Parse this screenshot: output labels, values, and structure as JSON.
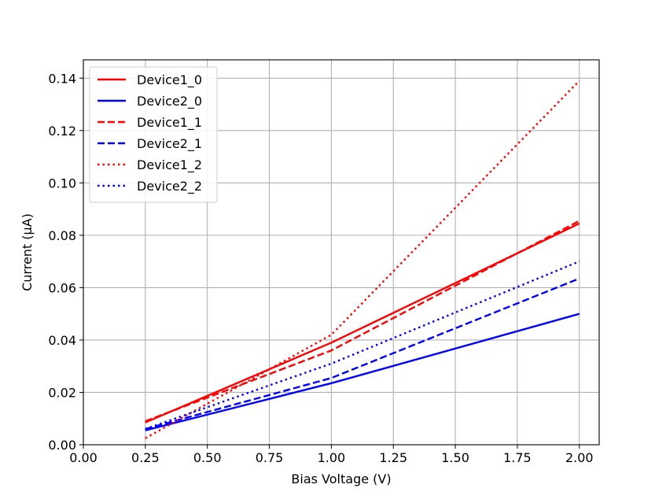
{
  "chart_data": {
    "type": "line",
    "title": "",
    "xlabel": "Bias Voltage (V)",
    "ylabel": "Current (µA)",
    "xlim": [
      0.0,
      2.08
    ],
    "ylim": [
      0.0,
      0.147
    ],
    "x_ticks": [
      "0.00",
      "0.25",
      "0.50",
      "0.75",
      "1.00",
      "1.25",
      "1.50",
      "1.75",
      "2.00"
    ],
    "x_tick_values": [
      0.0,
      0.25,
      0.5,
      0.75,
      1.0,
      1.25,
      1.5,
      1.75,
      2.0
    ],
    "y_ticks": [
      "0.00",
      "0.02",
      "0.04",
      "0.06",
      "0.08",
      "0.10",
      "0.12",
      "0.14"
    ],
    "y_tick_values": [
      0.0,
      0.02,
      0.04,
      0.06,
      0.08,
      0.1,
      0.12,
      0.14
    ],
    "grid": true,
    "legend_position": "top-left",
    "x": [
      0.25,
      1.0,
      2.0
    ],
    "series": [
      {
        "name": "Device1_0",
        "color": "#ff0000",
        "style": "solid",
        "values": [
          0.0085,
          0.039,
          0.0845
        ]
      },
      {
        "name": "Device2_0",
        "color": "#0000ff",
        "style": "solid",
        "values": [
          0.0055,
          0.0235,
          0.05
        ]
      },
      {
        "name": "Device1_1",
        "color": "#ff0000",
        "style": "dashed",
        "values": [
          0.009,
          0.036,
          0.0855
        ]
      },
      {
        "name": "Device2_1",
        "color": "#0000ff",
        "style": "dashed",
        "values": [
          0.006,
          0.0255,
          0.0635
        ]
      },
      {
        "name": "Device1_2",
        "color": "#ff0000",
        "style": "dotted",
        "values": [
          0.0025,
          0.042,
          0.139
        ]
      },
      {
        "name": "Device2_2",
        "color": "#0000ff",
        "style": "dotted",
        "values": [
          0.006,
          0.031,
          0.07
        ]
      }
    ]
  }
}
